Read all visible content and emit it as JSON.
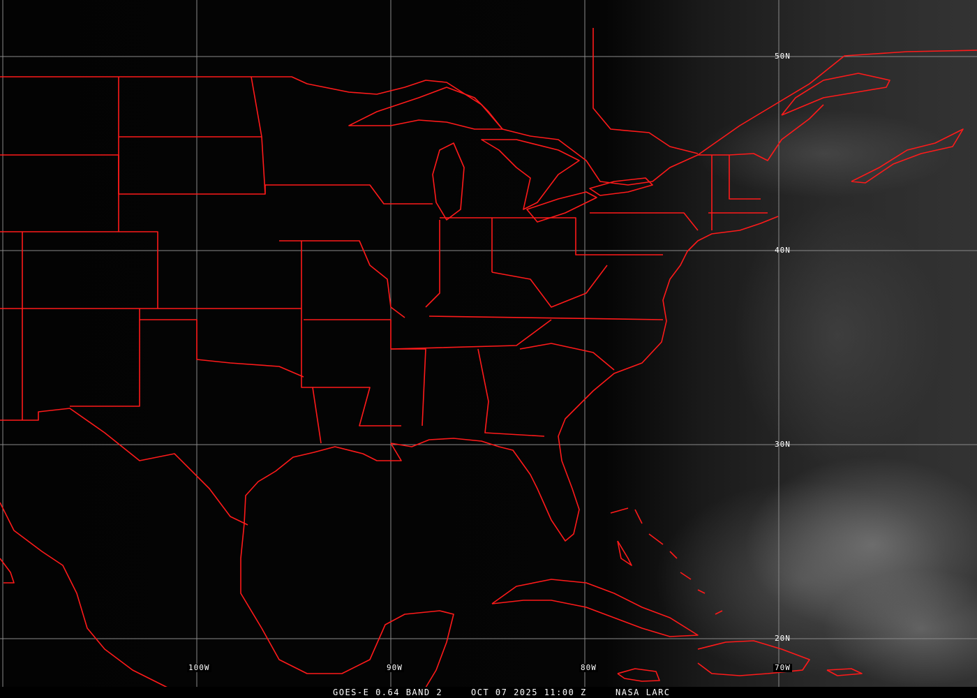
{
  "grid": {
    "latitudes": [
      "50N",
      "40N",
      "30N",
      "20N"
    ],
    "longitudes": [
      "100W",
      "90W",
      "80W",
      "70W"
    ]
  },
  "caption": {
    "product": "GOES-E 0.64 BAND 2",
    "datetime": "OCT 07 2025 11:00 Z",
    "credit": "NASA LARC"
  },
  "colors": {
    "borders": "#ff1a1a",
    "grid": "#9a9a9a",
    "background": "#000000"
  }
}
